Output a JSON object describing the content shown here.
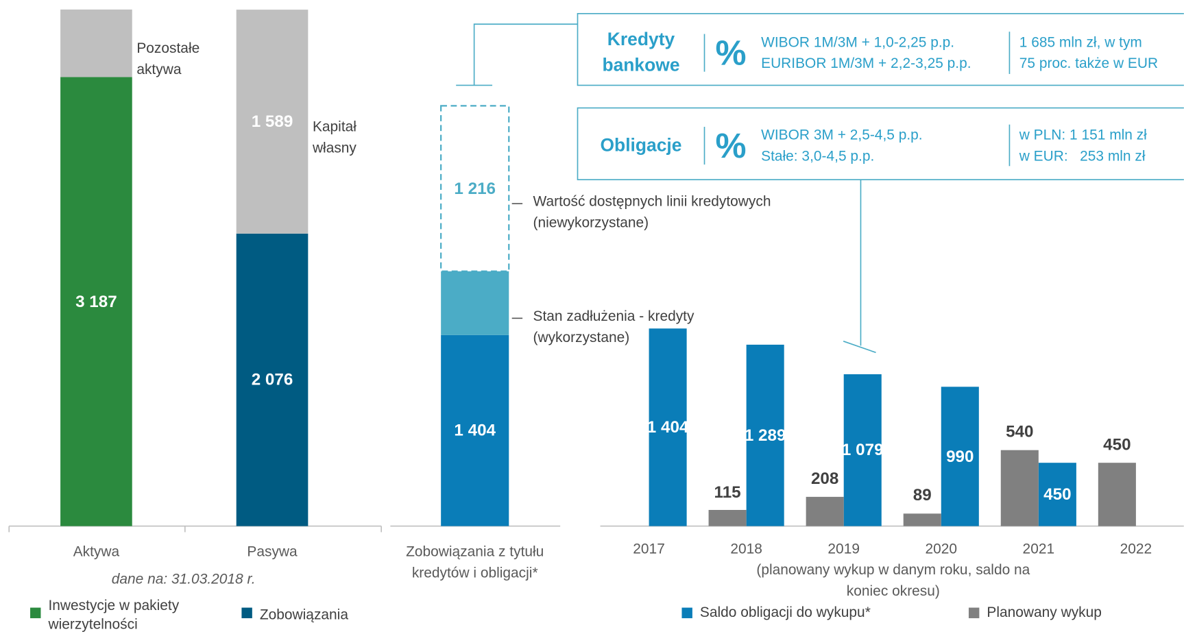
{
  "chart_data": [
    {
      "type": "stacked_bar",
      "categories": [
        "Aktywa",
        "Pasywa"
      ],
      "caption": "dane na: 31.03.2018 r.",
      "ylim": [
        0,
        3680
      ],
      "series": [
        {
          "name": "Inwestycje w pakiety wierzytelności",
          "color": "#2b8a3e",
          "values": [
            3187,
            null
          ],
          "value_labels": [
            "3 187",
            null
          ]
        },
        {
          "name": "Zobowiązania",
          "color": "#005b82",
          "values": [
            null,
            2076
          ],
          "value_labels": [
            null,
            "2 076"
          ]
        },
        {
          "name": "Pozostałe aktywa",
          "color": "#bfbfbf",
          "values": [
            479,
            null
          ],
          "legend": false
        },
        {
          "name": "Kapitał własny",
          "color": "#bfbfbf",
          "values": [
            null,
            1589
          ],
          "value_labels": [
            null,
            "1 589"
          ],
          "legend": false
        }
      ]
    },
    {
      "type": "stacked_bar",
      "categories": [
        "Zobowiązania z tytułu kredytów i obligacji*"
      ],
      "ylim": [
        0,
        3800
      ],
      "series": [
        {
          "color": "#0a7db8",
          "values": [
            1404
          ],
          "value_labels": [
            "1 404"
          ],
          "legend": false
        },
        {
          "name": "Stan zadłużenia - kredyty (wykorzystane)",
          "color": "#4bacc6",
          "values": [
            469
          ],
          "legend": false
        },
        {
          "name": "Wartość dostępnych linii kredytowych (niewykorzystane)",
          "color": "#4bacc6",
          "values": [
            1216
          ],
          "value_labels": [
            "1 216"
          ],
          "legend": false,
          "style": "dashed"
        }
      ]
    },
    {
      "type": "bar",
      "categories": [
        "2017",
        "2018",
        "2019",
        "2020",
        "2021",
        "2022"
      ],
      "subtitle": "(planowany wykup w danym roku, saldo na koniec okresu)",
      "ylim": [
        0,
        1700
      ],
      "legend": "bottom",
      "series": [
        {
          "name": "Saldo obligacji do wykupu*",
          "color": "#0a7db8",
          "values": [
            1404,
            1289,
            1079,
            990,
            450,
            null
          ],
          "value_labels": [
            "1 404",
            "1 289",
            "1 079",
            "990",
            "450",
            null
          ],
          "label_position": "inside"
        },
        {
          "name": "Planowany wykup",
          "color": "#808080",
          "values": [
            null,
            115,
            208,
            89,
            540,
            450
          ],
          "label_position": "above"
        }
      ]
    }
  ],
  "info_boxes": [
    {
      "title": "Kredyty bankowe",
      "symbol": "%",
      "rates": [
        "WIBOR 1M/3M + 1,0-2,25 p.p.",
        "EURIBOR 1M/3M + 2,2-3,25 p.p."
      ],
      "amounts": [
        "1 685 mln zł, w tym",
        "75 proc. także w EUR"
      ]
    },
    {
      "title": "Obligacje",
      "symbol": "%",
      "rates": [
        "WIBOR 3M + 2,5-4,5 p.p.",
        "Stałe: 3,0-4,5 p.p."
      ],
      "amounts": [
        "w PLN: 1 151 mln zł",
        "w EUR:   253 mln zł"
      ]
    }
  ]
}
